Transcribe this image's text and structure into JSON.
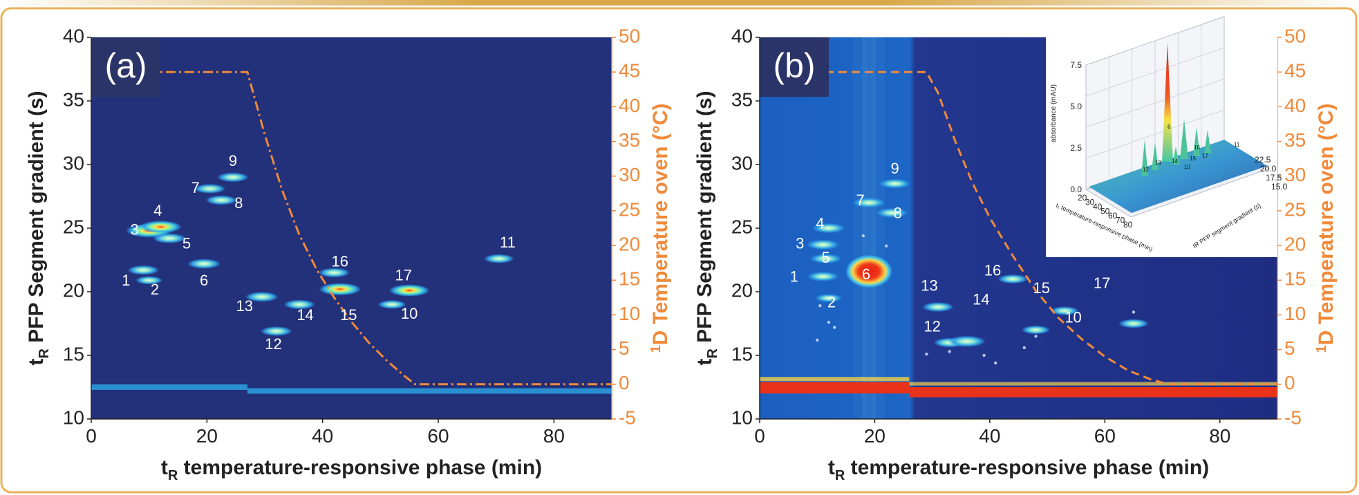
{
  "page": {
    "colors": {
      "background": "#ffffff",
      "topbar_gold": "#d8a84a",
      "frame": "#e8b25a",
      "plot_bg": "#23307a",
      "axis_text": "#222222",
      "temp_axis": "#f08a3a",
      "peak_label": "#ffffff",
      "panel_tag_bg": "#2a3468"
    }
  },
  "chart_data": [
    {
      "panel": "a",
      "panel_label": "(a)",
      "type": "heatmap",
      "subtype": "2D LC × LC contour plot with secondary temperature axis",
      "xlabel_main": "t",
      "xlabel_sub": "R",
      "xlabel_rest": " temperature-responsive phase (min)",
      "ylabel_main": "t",
      "ylabel_sub": "R",
      "ylabel_rest": " PFP Segment gradient (s)",
      "y2label_sup": "1",
      "y2label_rest": "D Temperature oven (°C)",
      "xlim": [
        0,
        90
      ],
      "xticks": [
        0,
        20,
        40,
        60,
        80
      ],
      "ylim": [
        10,
        40
      ],
      "yticks": [
        10,
        15,
        20,
        25,
        30,
        35,
        40
      ],
      "y2lim": [
        -5,
        50
      ],
      "y2ticks": [
        -5,
        0,
        5,
        10,
        15,
        20,
        25,
        30,
        35,
        40,
        45,
        50
      ],
      "temperature_profile": {
        "style": "dash-dot",
        "color": "#f08a3a",
        "points": [
          [
            0,
            45
          ],
          [
            27,
            45
          ],
          [
            30,
            36
          ],
          [
            33,
            28
          ],
          [
            36,
            21.5
          ],
          [
            39,
            16.5
          ],
          [
            42,
            12.5
          ],
          [
            45,
            9
          ],
          [
            48,
            6
          ],
          [
            51,
            3.5
          ],
          [
            54,
            1.3
          ],
          [
            56,
            0
          ],
          [
            90,
            0
          ]
        ]
      },
      "baseline_bands": [
        {
          "x": [
            0,
            27
          ],
          "y": 12.5
        },
        {
          "x": [
            27,
            90
          ],
          "y": 12.2
        }
      ],
      "peaks": [
        {
          "id": "1",
          "x": 9,
          "y": 21.7,
          "intensity": 0.5,
          "label_x": 6,
          "label_y": 20.8
        },
        {
          "id": "2",
          "x": 10,
          "y": 20.9,
          "intensity": 0.35,
          "label_x": 11,
          "label_y": 20.1
        },
        {
          "id": "3",
          "x": 10,
          "y": 24.8,
          "intensity": 1.0,
          "label_x": 7.5,
          "label_y": 24.8
        },
        {
          "id": "4",
          "x": 12,
          "y": 25.1,
          "intensity": 0.85,
          "label_x": 11.5,
          "label_y": 26.3
        },
        {
          "id": "5",
          "x": 13.5,
          "y": 24.2,
          "intensity": 0.55,
          "label_x": 16.5,
          "label_y": 23.7
        },
        {
          "id": "6",
          "x": 19.5,
          "y": 22.2,
          "intensity": 0.55,
          "label_x": 19.5,
          "label_y": 20.8
        },
        {
          "id": "7",
          "x": 20.5,
          "y": 28.1,
          "intensity": 0.5,
          "label_x": 18,
          "label_y": 28.1
        },
        {
          "id": "8",
          "x": 22.5,
          "y": 27.2,
          "intensity": 0.5,
          "label_x": 25.5,
          "label_y": 26.9
        },
        {
          "id": "9",
          "x": 24.5,
          "y": 29,
          "intensity": 0.5,
          "label_x": 24.5,
          "label_y": 30.2
        },
        {
          "id": "10",
          "x": 52,
          "y": 19,
          "intensity": 0.4,
          "label_x": 55,
          "label_y": 18.2
        },
        {
          "id": "11",
          "x": 70.5,
          "y": 22.6,
          "intensity": 0.45,
          "label_x": 72,
          "label_y": 23.8
        },
        {
          "id": "12",
          "x": 32,
          "y": 16.9,
          "intensity": 0.5,
          "label_x": 31.5,
          "label_y": 15.8
        },
        {
          "id": "13",
          "x": 29.5,
          "y": 19.6,
          "intensity": 0.55,
          "label_x": 26.5,
          "label_y": 18.8
        },
        {
          "id": "14",
          "x": 36,
          "y": 19,
          "intensity": 0.5,
          "label_x": 37,
          "label_y": 18.1
        },
        {
          "id": "15",
          "x": 43,
          "y": 20.2,
          "intensity": 0.85,
          "label_x": 44.5,
          "label_y": 18.1
        },
        {
          "id": "16",
          "x": 42,
          "y": 21.5,
          "intensity": 0.5,
          "label_x": 43,
          "label_y": 22.3
        },
        {
          "id": "17",
          "x": 55,
          "y": 20.1,
          "intensity": 0.8,
          "label_x": 54,
          "label_y": 21.2
        }
      ]
    },
    {
      "panel": "b",
      "panel_label": "(b)",
      "type": "heatmap",
      "subtype": "2D LC × LC contour plot with secondary temperature axis and 3D inset",
      "xlabel_main": "t",
      "xlabel_sub": "R",
      "xlabel_rest": " temperature-responsive phase (min)",
      "ylabel_main": "t",
      "ylabel_sub": "R",
      "ylabel_rest": " PFP Segment gradient (s)",
      "y2label_sup": "1",
      "y2label_rest": "D Temperature oven (°C)",
      "xlim": [
        0,
        90
      ],
      "xticks": [
        0,
        20,
        40,
        60,
        80
      ],
      "ylim": [
        10,
        40
      ],
      "yticks": [
        10,
        15,
        20,
        25,
        30,
        35,
        40
      ],
      "y2lim": [
        -5,
        50
      ],
      "y2ticks": [
        -5,
        0,
        5,
        10,
        15,
        20,
        25,
        30,
        35,
        40,
        45,
        50
      ],
      "temperature_profile": {
        "style": "dashed",
        "color": "#f08a3a",
        "points": [
          [
            0,
            45
          ],
          [
            29,
            45
          ],
          [
            31,
            42
          ],
          [
            34,
            35
          ],
          [
            37,
            29
          ],
          [
            40,
            24
          ],
          [
            44,
            18.5
          ],
          [
            48,
            13.5
          ],
          [
            52,
            9.5
          ],
          [
            56,
            6.5
          ],
          [
            60,
            4
          ],
          [
            64,
            2
          ],
          [
            68,
            0.7
          ],
          [
            71,
            0
          ],
          [
            90,
            0
          ]
        ]
      },
      "peaks": [
        {
          "id": "1",
          "x": 11,
          "y": 21.2,
          "intensity": 0.5,
          "label_x": 6,
          "label_y": 21.1
        },
        {
          "id": "2",
          "x": 12,
          "y": 19.5,
          "intensity": 0.35,
          "label_x": 12.5,
          "label_y": 19.1
        },
        {
          "id": "3",
          "x": 11,
          "y": 23.7,
          "intensity": 0.55,
          "label_x": 7,
          "label_y": 23.7
        },
        {
          "id": "4",
          "x": 12,
          "y": 25,
          "intensity": 0.55,
          "label_x": 10.5,
          "label_y": 25.3
        },
        {
          "id": "5",
          "x": 11.5,
          "y": 22.6,
          "intensity": 0.5,
          "label_x": 11.5,
          "label_y": 22.6
        },
        {
          "id": "6",
          "x": 19,
          "y": 21.6,
          "intensity": 1.0,
          "label_x": 18.5,
          "label_y": 21.3
        },
        {
          "id": "7",
          "x": 19,
          "y": 27,
          "intensity": 0.55,
          "label_x": 17.5,
          "label_y": 27.1
        },
        {
          "id": "8",
          "x": 23,
          "y": 26.2,
          "intensity": 0.5,
          "label_x": 24,
          "label_y": 26.1
        },
        {
          "id": "9",
          "x": 23.5,
          "y": 28.5,
          "intensity": 0.5,
          "label_x": 23.5,
          "label_y": 29.6
        },
        {
          "id": "10",
          "x": 53,
          "y": 18.5,
          "intensity": 0.4,
          "label_x": 54.5,
          "label_y": 17.9
        },
        {
          "id": "12",
          "x": 33,
          "y": 16,
          "intensity": 0.5,
          "label_x": 30,
          "label_y": 17.2
        },
        {
          "id": "13",
          "x": 31,
          "y": 18.8,
          "intensity": 0.5,
          "label_x": 29.5,
          "label_y": 20.4
        },
        {
          "id": "14",
          "x": 36,
          "y": 16.1,
          "intensity": 0.7,
          "label_x": 38.5,
          "label_y": 19.3
        },
        {
          "id": "15",
          "x": 48,
          "y": 17,
          "intensity": 0.4,
          "label_x": 49,
          "label_y": 20.2
        },
        {
          "id": "16",
          "x": 44,
          "y": 21,
          "intensity": 0.45,
          "label_x": 40.5,
          "label_y": 21.6
        },
        {
          "id": "17",
          "x": 65,
          "y": 17.5,
          "intensity": 0.45,
          "label_x": 59.5,
          "label_y": 20.6
        }
      ],
      "inset": {
        "type": "3D surface",
        "zlabel": "absorbance (mAU)",
        "zticks": [
          "0.0",
          "2.5",
          "5.0",
          "7.5"
        ],
        "xlabel": "t₁ temperature-responsive phase (min)",
        "xticks": [
          "20",
          "30",
          "40",
          "50",
          "60",
          "70",
          "80"
        ],
        "ylabel": "tR PFP segment gradient (s)",
        "yticks": [
          "15.0",
          "17.5",
          "20.0",
          "22.5"
        ],
        "peak_labels": [
          "12",
          "13",
          "6",
          "14",
          "15",
          "16",
          "17",
          "11",
          "10"
        ]
      }
    }
  ]
}
